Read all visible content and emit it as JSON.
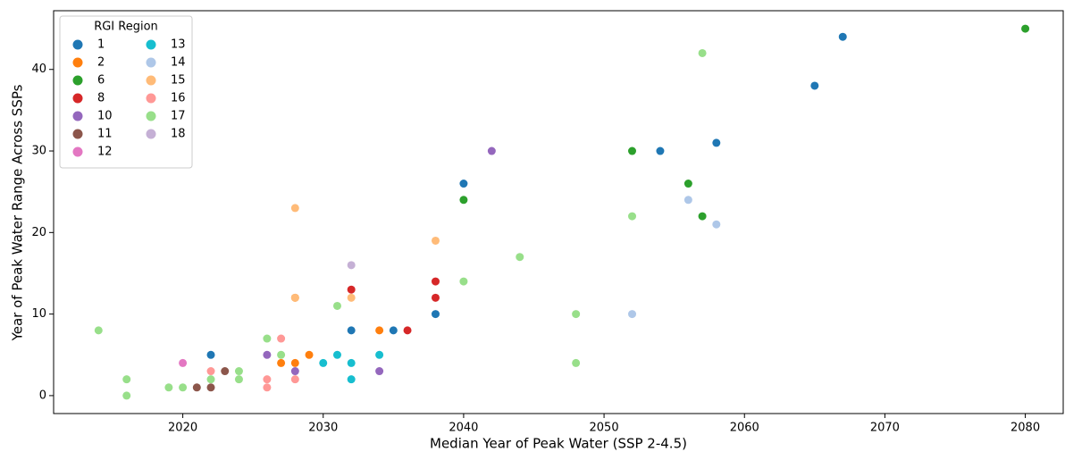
{
  "chart_data": {
    "type": "scatter",
    "xlabel": "Median Year of Peak Water (SSP 2-4.5)",
    "ylabel": "Year of Peak Water Range Across SSPs",
    "xlim": [
      2010.8,
      2082.7
    ],
    "ylim": [
      -2.2,
      47.2
    ],
    "xticks": [
      2020,
      2030,
      2040,
      2050,
      2060,
      2070,
      2080
    ],
    "yticks": [
      0,
      10,
      20,
      30,
      40
    ],
    "legend": {
      "title": "RGI Region",
      "loc": "upper left",
      "ncol": 2
    },
    "series": [
      {
        "name": "1",
        "color": "#1f77b4",
        "x": [
          2022,
          2032,
          2035,
          2038,
          2040,
          2054,
          2058,
          2065,
          2067
        ],
        "values": [
          5,
          8,
          8,
          10,
          26,
          30,
          31,
          38,
          44
        ]
      },
      {
        "name": "2",
        "color": "#ff7f0e",
        "x": [
          2027,
          2028,
          2029,
          2034,
          2028
        ],
        "values": [
          4,
          4,
          5,
          8,
          12
        ]
      },
      {
        "name": "6",
        "color": "#2ca02c",
        "x": [
          2040,
          2052,
          2056,
          2057,
          2080
        ],
        "values": [
          24,
          30,
          26,
          22,
          45
        ]
      },
      {
        "name": "8",
        "color": "#d62728",
        "x": [
          2032,
          2036,
          2038,
          2038
        ],
        "values": [
          13,
          8,
          14,
          12
        ]
      },
      {
        "name": "10",
        "color": "#9467bd",
        "x": [
          2026,
          2028,
          2034,
          2042
        ],
        "values": [
          5,
          3,
          3,
          30
        ]
      },
      {
        "name": "11",
        "color": "#8c564b",
        "x": [
          2021,
          2022,
          2023
        ],
        "values": [
          1,
          1,
          3
        ]
      },
      {
        "name": "12",
        "color": "#e377c2",
        "x": [
          2020
        ],
        "values": [
          4
        ]
      },
      {
        "name": "13",
        "color": "#17becf",
        "x": [
          2030,
          2031,
          2032,
          2032,
          2034
        ],
        "values": [
          4,
          5,
          4,
          2,
          5
        ]
      },
      {
        "name": "14",
        "color": "#aec7e8",
        "x": [
          2052,
          2056,
          2058
        ],
        "values": [
          10,
          24,
          21
        ]
      },
      {
        "name": "15",
        "color": "#ffbb78",
        "x": [
          2028,
          2028,
          2032,
          2038
        ],
        "values": [
          23,
          12,
          12,
          19
        ]
      },
      {
        "name": "16",
        "color": "#ff9896",
        "x": [
          2022,
          2026,
          2026,
          2027,
          2028
        ],
        "values": [
          3,
          2,
          1,
          7,
          2
        ]
      },
      {
        "name": "17",
        "color": "#98df8a",
        "x": [
          2014,
          2016,
          2016,
          2019,
          2020,
          2022,
          2024,
          2024,
          2026,
          2027,
          2031,
          2040,
          2044,
          2048,
          2048,
          2052,
          2057
        ],
        "values": [
          8,
          2,
          0,
          1,
          1,
          2,
          3,
          2,
          7,
          5,
          11,
          14,
          17,
          10,
          4,
          22,
          42
        ]
      },
      {
        "name": "18",
        "color": "#c5b0d5",
        "x": [
          2032
        ],
        "values": [
          16
        ]
      }
    ]
  }
}
